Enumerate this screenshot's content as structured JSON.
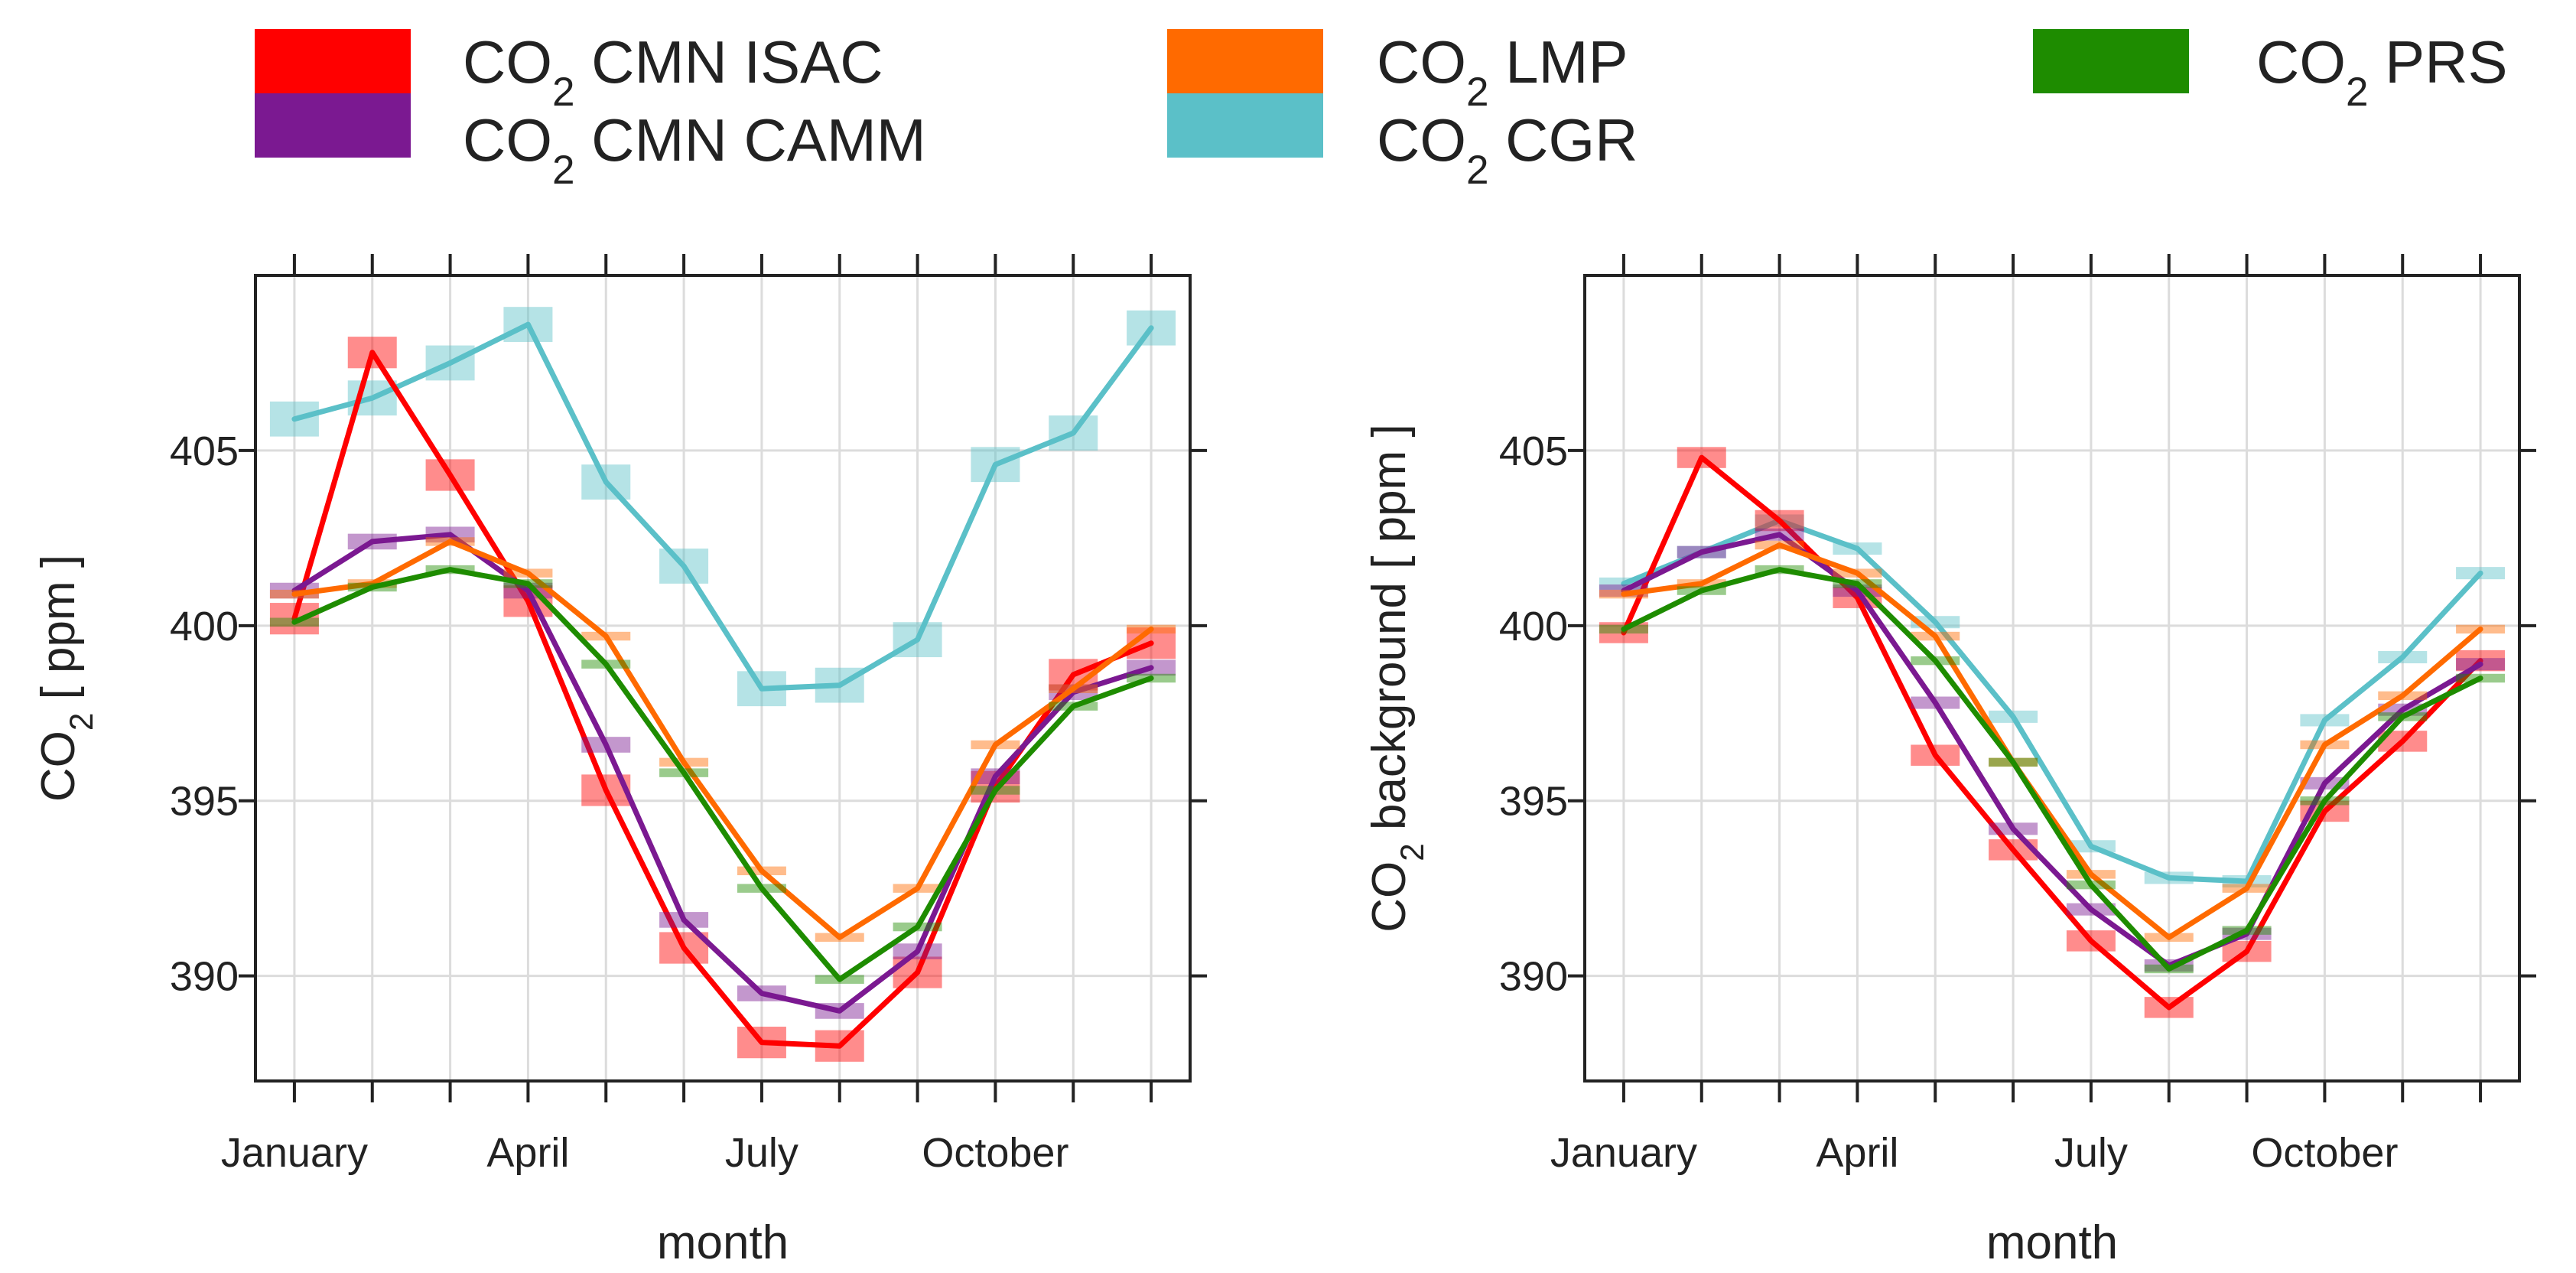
{
  "legend": [
    {
      "key": "isac",
      "prefix": "CO",
      "sub": "2",
      "suffix": " CMN ISAC",
      "color": "#ff0000"
    },
    {
      "key": "camm",
      "prefix": "CO",
      "sub": "2",
      "suffix": " CMN CAMM",
      "color": "#7b1991"
    },
    {
      "key": "lmp",
      "prefix": "CO",
      "sub": "2",
      "suffix": " LMP",
      "color": "#ff6a00"
    },
    {
      "key": "cgr",
      "prefix": "CO",
      "sub": "2",
      "suffix": " CGR",
      "color": "#5bc0c8"
    },
    {
      "key": "prs",
      "prefix": "CO",
      "sub": "2",
      "suffix": " PRS",
      "color": "#1e8c00"
    }
  ],
  "chart_data": [
    {
      "type": "line",
      "title": "",
      "xlabel": "month",
      "ylabel_prefix": "CO",
      "ylabel_sub": "2",
      "ylabel_suffix": " [ ppm ]",
      "x": [
        1,
        2,
        3,
        4,
        5,
        6,
        7,
        8,
        9,
        10,
        11,
        12
      ],
      "x_ticks": [
        {
          "x": 1,
          "label": "January"
        },
        {
          "x": 4,
          "label": "April"
        },
        {
          "x": 7,
          "label": "July"
        },
        {
          "x": 10,
          "label": "October"
        }
      ],
      "y_ticks": [
        {
          "y": 390,
          "label": "390"
        },
        {
          "y": 395,
          "label": "395"
        },
        {
          "y": 400,
          "label": "400"
        },
        {
          "y": 405,
          "label": "405"
        }
      ],
      "xlim": [
        0.5,
        12.5
      ],
      "ylim": [
        387.0,
        410.0
      ],
      "series": [
        {
          "key": "cgr",
          "name": "CO2 CGR",
          "values": [
            405.9,
            406.5,
            407.5,
            408.6,
            404.1,
            401.7,
            398.2,
            398.3,
            399.6,
            404.6,
            405.5,
            408.5
          ],
          "box_size": 1.0
        },
        {
          "key": "isac",
          "name": "CO2 CMN ISAC",
          "values": [
            400.2,
            407.8,
            404.3,
            400.7,
            395.3,
            390.8,
            388.1,
            388.0,
            390.1,
            395.4,
            398.6,
            399.5
          ],
          "box_size": 0.9
        },
        {
          "key": "camm",
          "name": "CO2 CMN CAMM",
          "values": [
            401.0,
            402.4,
            402.6,
            401.0,
            396.6,
            391.6,
            389.5,
            389.0,
            390.7,
            395.7,
            398.1,
            398.8
          ],
          "box_size": 0.45
        },
        {
          "key": "lmp",
          "name": "CO2 LMP",
          "values": [
            400.9,
            401.2,
            402.4,
            401.5,
            399.7,
            396.1,
            393.0,
            391.1,
            392.5,
            396.6,
            398.2,
            399.9
          ],
          "box_size": 0.25
        },
        {
          "key": "prs",
          "name": "CO2 PRS",
          "values": [
            400.1,
            401.1,
            401.6,
            401.2,
            398.9,
            395.8,
            392.5,
            389.9,
            391.4,
            395.3,
            397.7,
            398.5
          ],
          "box_size": 0.25
        }
      ]
    },
    {
      "type": "line",
      "title": "",
      "xlabel": "month",
      "ylabel_prefix": "CO",
      "ylabel_sub": "2",
      "ylabel_suffix": " background [ ppm ]",
      "x": [
        1,
        2,
        3,
        4,
        5,
        6,
        7,
        8,
        9,
        10,
        11,
        12
      ],
      "x_ticks": [
        {
          "x": 1,
          "label": "January"
        },
        {
          "x": 4,
          "label": "April"
        },
        {
          "x": 7,
          "label": "July"
        },
        {
          "x": 10,
          "label": "October"
        }
      ],
      "y_ticks": [
        {
          "y": 390,
          "label": "390"
        },
        {
          "y": 395,
          "label": "395"
        },
        {
          "y": 400,
          "label": "400"
        },
        {
          "y": 405,
          "label": "405"
        }
      ],
      "xlim": [
        0.5,
        12.5
      ],
      "ylim": [
        387.0,
        410.0
      ],
      "series": [
        {
          "key": "cgr",
          "name": "CO2 CGR",
          "values": [
            401.2,
            402.1,
            403.0,
            402.2,
            400.1,
            397.4,
            393.7,
            392.8,
            392.7,
            397.3,
            399.1,
            401.5
          ],
          "box_size": 0.35
        },
        {
          "key": "isac",
          "name": "CO2 CMN ISAC",
          "values": [
            399.8,
            404.8,
            403.0,
            400.8,
            396.3,
            393.6,
            391.0,
            389.1,
            390.7,
            394.7,
            396.7,
            399.0
          ],
          "box_size": 0.6
        },
        {
          "key": "camm",
          "name": "CO2 CMN CAMM",
          "values": [
            401.0,
            402.1,
            402.6,
            401.0,
            397.8,
            394.2,
            391.9,
            390.3,
            391.2,
            395.5,
            397.6,
            398.9
          ],
          "box_size": 0.35
        },
        {
          "key": "lmp",
          "name": "CO2 LMP",
          "values": [
            400.9,
            401.2,
            402.3,
            401.5,
            399.7,
            396.1,
            392.9,
            391.1,
            392.5,
            396.6,
            398.0,
            399.9
          ],
          "box_size": 0.25
        },
        {
          "key": "prs",
          "name": "CO2 PRS",
          "values": [
            399.9,
            401.0,
            401.6,
            401.2,
            399.0,
            396.1,
            392.6,
            390.2,
            391.3,
            395.0,
            397.4,
            398.5
          ],
          "box_size": 0.25
        }
      ]
    }
  ]
}
